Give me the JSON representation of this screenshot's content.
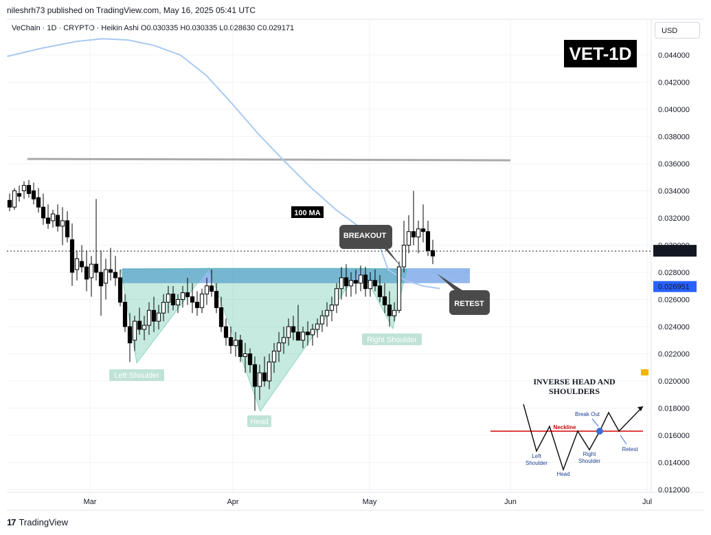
{
  "header": {
    "publisher": "nileshrh73 published on TradingView.com, May 16, 2025 05:41 UTC",
    "symbol_line": "VeChain · 1D · CRYPTO · Heikin Ashi  O0.030335  H0.030335  L0.028630  C0.029171",
    "currency": "USD",
    "badge": "VET-1D"
  },
  "footer": {
    "logo_text": "TradingView"
  },
  "chart_data": {
    "type": "candlestick",
    "y_axis": {
      "ylim": [
        0.012,
        0.046
      ],
      "ticks": [
        "0.044000",
        "0.042000",
        "0.040000",
        "0.038000",
        "0.036000",
        "0.034000",
        "0.032000",
        "0.030000",
        "0.028000",
        "0.026000",
        "0.024000",
        "0.022000",
        "0.020000",
        "0.018000",
        "0.016000",
        "0.014000",
        "0.012000"
      ]
    },
    "x_axis": {
      "labels": [
        "Mar",
        "Apr",
        "May",
        "Jun",
        "Jul"
      ]
    },
    "price_labels": [
      {
        "value": "0.029562",
        "style": "current"
      },
      {
        "value": "0.026951",
        "style": "zone"
      }
    ],
    "annotations": {
      "ma_label": "100 MA",
      "breakout": "BREAKOUT",
      "retest": "RETEST",
      "left_shoulder": "Left Shoulder",
      "head": "Head",
      "right_shoulder": "Right Shoulder"
    },
    "resistance_level": 0.0363,
    "neckline_zone": [
      0.0272,
      0.0283
    ],
    "ohlc": [
      [
        0.0333,
        0.0338,
        0.0325,
        0.0328
      ],
      [
        0.0328,
        0.0342,
        0.0326,
        0.034
      ],
      [
        0.0338,
        0.0344,
        0.0332,
        0.0336
      ],
      [
        0.034,
        0.0347,
        0.0334,
        0.0344
      ],
      [
        0.0344,
        0.0348,
        0.0335,
        0.0338
      ],
      [
        0.034,
        0.0346,
        0.033,
        0.0334
      ],
      [
        0.0335,
        0.0342,
        0.0324,
        0.0328
      ],
      [
        0.0328,
        0.0338,
        0.0315,
        0.032
      ],
      [
        0.032,
        0.033,
        0.0312,
        0.0316
      ],
      [
        0.0318,
        0.0326,
        0.0313,
        0.0323
      ],
      [
        0.0322,
        0.033,
        0.031,
        0.0314
      ],
      [
        0.0314,
        0.0328,
        0.03,
        0.0318
      ],
      [
        0.0318,
        0.0325,
        0.0302,
        0.0306
      ],
      [
        0.0304,
        0.0316,
        0.027,
        0.028
      ],
      [
        0.0282,
        0.0296,
        0.0274,
        0.029
      ],
      [
        0.0288,
        0.03,
        0.028,
        0.0284
      ],
      [
        0.0284,
        0.0296,
        0.0266,
        0.0275
      ],
      [
        0.0276,
        0.0292,
        0.0262,
        0.0286
      ],
      [
        0.0286,
        0.0334,
        0.0274,
        0.028
      ],
      [
        0.028,
        0.0296,
        0.0248,
        0.027
      ],
      [
        0.0272,
        0.029,
        0.026,
        0.0282
      ],
      [
        0.0282,
        0.0298,
        0.0274,
        0.028
      ],
      [
        0.028,
        0.0292,
        0.027,
        0.0276
      ],
      [
        0.0276,
        0.0282,
        0.0255,
        0.0258
      ],
      [
        0.0258,
        0.0264,
        0.0236,
        0.024
      ],
      [
        0.024,
        0.025,
        0.0214,
        0.0228
      ],
      [
        0.023,
        0.0248,
        0.0222,
        0.0244
      ],
      [
        0.0244,
        0.0254,
        0.0234,
        0.0238
      ],
      [
        0.0238,
        0.0248,
        0.023,
        0.0241
      ],
      [
        0.0241,
        0.0258,
        0.0234,
        0.0252
      ],
      [
        0.0252,
        0.0262,
        0.0236,
        0.0244
      ],
      [
        0.0244,
        0.0256,
        0.0238,
        0.025
      ],
      [
        0.025,
        0.0264,
        0.0244,
        0.0258
      ],
      [
        0.0258,
        0.027,
        0.025,
        0.0264
      ],
      [
        0.0264,
        0.027,
        0.0252,
        0.0256
      ],
      [
        0.0256,
        0.0264,
        0.025,
        0.026
      ],
      [
        0.026,
        0.027,
        0.0254,
        0.0265
      ],
      [
        0.0265,
        0.0276,
        0.0256,
        0.0262
      ],
      [
        0.0262,
        0.0272,
        0.025,
        0.0258
      ],
      [
        0.0258,
        0.0266,
        0.0248,
        0.0254
      ],
      [
        0.0254,
        0.0268,
        0.025,
        0.0264
      ],
      [
        0.0264,
        0.0276,
        0.0256,
        0.027
      ],
      [
        0.027,
        0.0282,
        0.0262,
        0.0266
      ],
      [
        0.0266,
        0.0272,
        0.025,
        0.0254
      ],
      [
        0.0254,
        0.0262,
        0.0236,
        0.024
      ],
      [
        0.024,
        0.0246,
        0.0226,
        0.0232
      ],
      [
        0.0232,
        0.024,
        0.022,
        0.0226
      ],
      [
        0.0226,
        0.0236,
        0.0218,
        0.023
      ],
      [
        0.023,
        0.0234,
        0.0214,
        0.0218
      ],
      [
        0.0218,
        0.0228,
        0.0206,
        0.022
      ],
      [
        0.022,
        0.0224,
        0.0206,
        0.0212
      ],
      [
        0.0212,
        0.0218,
        0.0178,
        0.0196
      ],
      [
        0.0196,
        0.0212,
        0.0186,
        0.0206
      ],
      [
        0.0206,
        0.0218,
        0.0196,
        0.02
      ],
      [
        0.02,
        0.022,
        0.0194,
        0.0214
      ],
      [
        0.0214,
        0.0228,
        0.0206,
        0.0222
      ],
      [
        0.0222,
        0.0236,
        0.0214,
        0.0228
      ],
      [
        0.0228,
        0.024,
        0.022,
        0.0232
      ],
      [
        0.0232,
        0.0246,
        0.0226,
        0.024
      ],
      [
        0.024,
        0.0248,
        0.023,
        0.0236
      ],
      [
        0.0236,
        0.0256,
        0.0232,
        0.023
      ],
      [
        0.023,
        0.024,
        0.0224,
        0.0236
      ],
      [
        0.0236,
        0.0244,
        0.0226,
        0.0234
      ],
      [
        0.0234,
        0.0242,
        0.0226,
        0.0238
      ],
      [
        0.0238,
        0.0246,
        0.0232,
        0.0242
      ],
      [
        0.0242,
        0.0252,
        0.0236,
        0.0248
      ],
      [
        0.0248,
        0.0258,
        0.024,
        0.0252
      ],
      [
        0.0252,
        0.0262,
        0.0244,
        0.0256
      ],
      [
        0.0256,
        0.0272,
        0.025,
        0.0268
      ],
      [
        0.0268,
        0.0284,
        0.026,
        0.0276
      ],
      [
        0.0276,
        0.0286,
        0.0262,
        0.027
      ],
      [
        0.027,
        0.028,
        0.0262,
        0.0274
      ],
      [
        0.0274,
        0.0282,
        0.0264,
        0.0272
      ],
      [
        0.0272,
        0.0285,
        0.0266,
        0.0278
      ],
      [
        0.0278,
        0.0284,
        0.0262,
        0.0268
      ],
      [
        0.0268,
        0.028,
        0.0262,
        0.0274
      ],
      [
        0.0274,
        0.0282,
        0.0266,
        0.027
      ],
      [
        0.027,
        0.0278,
        0.0258,
        0.0262
      ],
      [
        0.0262,
        0.0272,
        0.025,
        0.0256
      ],
      [
        0.0256,
        0.0266,
        0.024,
        0.0248
      ],
      [
        0.0248,
        0.0258,
        0.0244,
        0.0252
      ],
      [
        0.0252,
        0.0288,
        0.025,
        0.0284
      ],
      [
        0.0284,
        0.0318,
        0.028,
        0.03
      ],
      [
        0.03,
        0.0322,
        0.0294,
        0.031
      ],
      [
        0.031,
        0.034,
        0.03,
        0.0306
      ],
      [
        0.0306,
        0.0318,
        0.0294,
        0.0312
      ],
      [
        0.0312,
        0.033,
        0.0302,
        0.031
      ],
      [
        0.031,
        0.0318,
        0.0292,
        0.0296
      ],
      [
        0.0296,
        0.0304,
        0.0286,
        0.0292
      ]
    ],
    "ma_100": [
      [
        0,
        0.0439
      ],
      [
        8,
        0.0445
      ],
      [
        16,
        0.045
      ],
      [
        22,
        0.0452
      ],
      [
        28,
        0.0451
      ],
      [
        34,
        0.0447
      ],
      [
        40,
        0.044
      ],
      [
        46,
        0.0425
      ],
      [
        52,
        0.0404
      ],
      [
        58,
        0.0382
      ],
      [
        64,
        0.0362
      ],
      [
        70,
        0.0343
      ],
      [
        76,
        0.0326
      ],
      [
        82,
        0.0312
      ],
      [
        86,
        0.03
      ],
      [
        88,
        0.0282
      ],
      [
        92,
        0.0274
      ],
      [
        96,
        0.027
      ],
      [
        100,
        0.0268
      ]
    ],
    "inset": {
      "title": "INVERSE HEAD AND SHOULDERS",
      "labels": [
        "Left Shoulder",
        "Head",
        "Right Shoulder",
        "Neckline",
        "Break Out",
        "Retest"
      ]
    }
  }
}
